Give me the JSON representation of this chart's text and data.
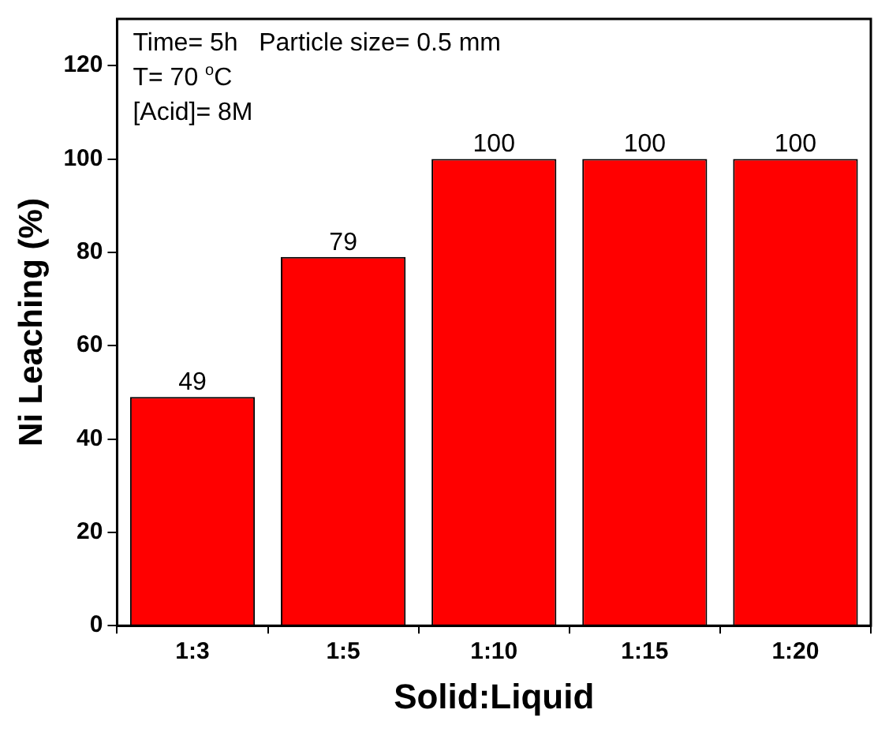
{
  "chart_data": {
    "type": "bar",
    "xlabel": "Solid:Liquid",
    "ylabel": "Ni Leaching (%)",
    "categories": [
      "1:3",
      "1:5",
      "1:10",
      "1:15",
      "1:20"
    ],
    "values": [
      49,
      79,
      100,
      100,
      100
    ],
    "color": "#ff0000",
    "ylim": [
      0,
      130
    ],
    "yticks": [
      0,
      20,
      40,
      60,
      80,
      100,
      120
    ],
    "grid": false,
    "legend": false,
    "data_labels": true,
    "annotations": [
      "Time= 5h   Particle size= 0.5 mm",
      "T= 70 $^{o}$C",
      "[Acid]= 8M"
    ]
  }
}
